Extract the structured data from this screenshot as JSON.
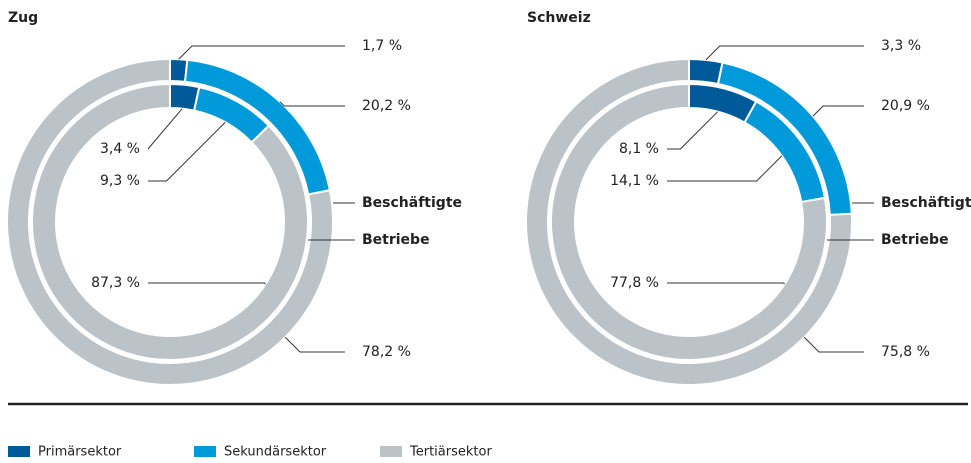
{
  "chart_data": [
    {
      "type": "donut",
      "title": "Zug",
      "series": [
        {
          "name": "Beschäftigte",
          "values": [
            1.7,
            20.2,
            78.2
          ],
          "value_labels": [
            "1,7 %",
            "20,2 %",
            "78,2 %"
          ]
        },
        {
          "name": "Betriebe",
          "values": [
            3.4,
            9.3,
            87.3
          ],
          "value_labels": [
            "3,4 %",
            "9,3 %",
            "87,3 %"
          ]
        }
      ]
    },
    {
      "type": "donut",
      "title": "Schweiz",
      "series": [
        {
          "name": "Beschäftigte",
          "values": [
            3.3,
            20.9,
            75.8
          ],
          "value_labels": [
            "3,3 %",
            "20,9 %",
            "75,8 %"
          ]
        },
        {
          "name": "Betriebe",
          "values": [
            8.1,
            14.1,
            77.8
          ],
          "value_labels": [
            "8,1 %",
            "14,1 %",
            "77,8 %"
          ]
        }
      ]
    }
  ],
  "legend": {
    "categories": [
      "Primärsektor",
      "Sekundärsektor",
      "Tertiärsektor"
    ],
    "colors": [
      "#005a9a",
      "#0099da",
      "#bcc3c8"
    ]
  }
}
